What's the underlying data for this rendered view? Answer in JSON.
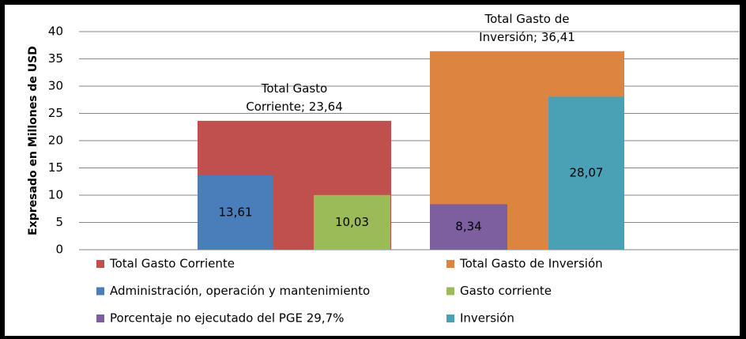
{
  "chart_data": {
    "type": "bar",
    "y_label": "Expresado en  Millones de USD",
    "ylim": [
      0,
      40
    ],
    "yticks": [
      0,
      5,
      10,
      15,
      20,
      25,
      30,
      35,
      40
    ],
    "grid": true,
    "series": [
      {
        "name": "Total Gasto Corriente",
        "color": "#c0504d",
        "values": [
          23.64
        ],
        "value_labels": [
          "Total Gasto Corriente; 23,64"
        ]
      },
      {
        "name": "Total Gasto de Inversión",
        "color": "#dd8540",
        "values": [
          36.41
        ],
        "value_labels": [
          "Total Gasto de Inversión; 36,41"
        ]
      },
      {
        "name": "Administración, operación y mantenimiento",
        "color": "#4a7ebb",
        "values": [
          13.61
        ],
        "value_labels": [
          "13,61"
        ]
      },
      {
        "name": "Gasto corriente",
        "color": "#9bbb59",
        "values": [
          10.03
        ],
        "value_labels": [
          "10,03"
        ]
      },
      {
        "name": "Porcentaje no ejecutado del PGE 29,7%",
        "color": "#7d5f9f",
        "values": [
          8.34
        ],
        "value_labels": [
          "8,34"
        ]
      },
      {
        "name": "Inversión",
        "color": "#4aa0b5",
        "values": [
          28.07
        ],
        "value_labels": [
          "28,07"
        ]
      }
    ]
  }
}
